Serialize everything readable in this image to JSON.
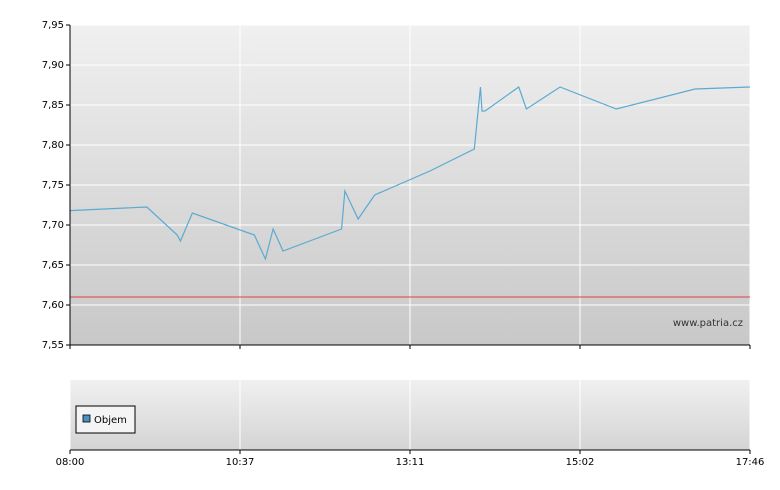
{
  "chart_data": {
    "type": "line",
    "x": [
      "08:00",
      "09:11",
      "09:39",
      "09:42",
      "09:53",
      "10:50",
      "11:00",
      "11:07",
      "11:16",
      "12:09",
      "12:12",
      "12:24",
      "12:39",
      "13:24",
      "13:53",
      "13:57",
      "13:58",
      "14:00",
      "14:22",
      "14:27",
      "14:49",
      "15:37",
      "16:53",
      "17:46"
    ],
    "series": [
      {
        "color": "#5aaad2",
        "values": [
          7.718,
          7.7225,
          7.6875,
          7.68,
          7.715,
          7.6875,
          7.6575,
          7.695,
          7.6675,
          7.695,
          7.7425,
          7.7075,
          7.7375,
          7.7675,
          7.795,
          7.8725,
          7.8425,
          7.8425,
          7.8725,
          7.845,
          7.8725,
          7.845,
          7.87,
          7.8725
        ]
      }
    ],
    "xticks": [
      "08:00",
      "10:37",
      "13:11",
      "15:02",
      "17:46"
    ],
    "ylim": [
      7.55,
      7.95
    ],
    "yticks": [
      {
        "value": 7.55,
        "label": "7,55"
      },
      {
        "value": 7.6,
        "label": "7,60"
      },
      {
        "value": 7.65,
        "label": "7,65"
      },
      {
        "value": 7.7,
        "label": "7,70"
      },
      {
        "value": 7.75,
        "label": "7,75"
      },
      {
        "value": 7.8,
        "label": "7,80"
      },
      {
        "value": 7.85,
        "label": "7,85"
      },
      {
        "value": 7.9,
        "label": "7,90"
      },
      {
        "value": 7.95,
        "label": "7,95"
      }
    ],
    "reference_line": {
      "value": 7.61,
      "color": "#e04040"
    },
    "watermark": "www.patria.cz",
    "grid": true,
    "volume_legend": {
      "name": "Objem",
      "color": "#4a90c0"
    }
  }
}
